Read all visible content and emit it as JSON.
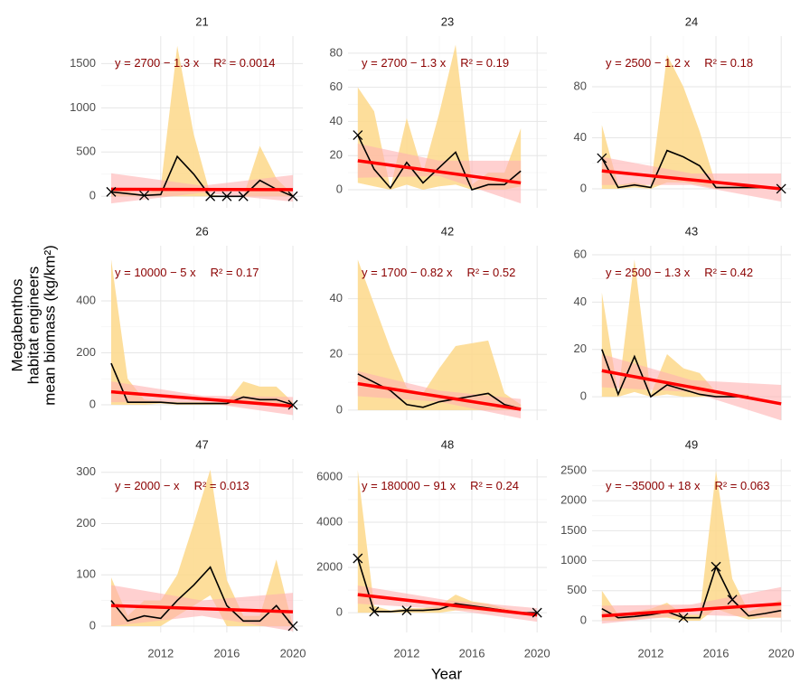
{
  "x_label": "Year",
  "y_label": [
    "Megabenthos",
    "habitat engineers",
    "mean biomass (kg/km²)"
  ],
  "xlim": [
    2008.4,
    2020.6
  ],
  "xticks": [
    2012,
    2016,
    2020
  ],
  "colors": {
    "mean": "#000000",
    "range": "#fdd88a",
    "fit": "#ff0000",
    "ci": "#ffb0b0"
  },
  "chart_data": [
    {
      "type": "line",
      "title": "21",
      "equation": "y = 2700 − 1.3 x",
      "r2": "R² = 0.0014",
      "ylim": [
        -130,
        1810
      ],
      "yticks": [
        0,
        500,
        1000,
        1500
      ],
      "x": [
        2009,
        2010,
        2011,
        2012,
        2013,
        2014,
        2015,
        2016,
        2017,
        2018,
        2019,
        2020
      ],
      "mean": [
        50,
        30,
        10,
        20,
        450,
        250,
        0,
        0,
        0,
        180,
        80,
        0
      ],
      "range_low": [
        0,
        0,
        0,
        0,
        0,
        0,
        0,
        0,
        0,
        0,
        0,
        0
      ],
      "range_high": [
        100,
        60,
        20,
        100,
        1700,
        700,
        20,
        0,
        0,
        570,
        200,
        20
      ],
      "markers": [
        50,
        null,
        10,
        null,
        null,
        null,
        0,
        0,
        0,
        null,
        null,
        0
      ],
      "fit_x": [
        2009,
        2020
      ],
      "fit": [
        80,
        75
      ],
      "ci_x": [
        2009,
        2014.5,
        2020
      ],
      "ci_low": [
        -80,
        40,
        -60
      ],
      "ci_high": [
        260,
        120,
        240
      ]
    },
    {
      "type": "line",
      "title": "23",
      "equation": "y = 2700 − 1.3 x",
      "r2": "R² = 0.19",
      "ylim": [
        -10.6,
        90
      ],
      "yticks": [
        0,
        20,
        40,
        60,
        80
      ],
      "x": [
        2009,
        2010,
        2011,
        2012,
        2013,
        2014,
        2015,
        2016,
        2017,
        2018,
        2019,
        2020
      ],
      "mean": [
        32,
        12,
        1,
        16,
        4,
        13,
        22,
        0,
        3,
        3,
        11,
        null
      ],
      "range_low": [
        4,
        2,
        0,
        3,
        0,
        2,
        3,
        0,
        0,
        0,
        2,
        null
      ],
      "range_high": [
        60,
        46,
        1,
        42,
        10,
        45,
        85,
        3,
        10,
        10,
        36,
        null
      ],
      "markers": [
        32,
        null,
        null,
        null,
        null,
        null,
        null,
        null,
        null,
        null,
        null,
        null
      ],
      "fit_x": [
        2009,
        2019
      ],
      "fit": [
        17,
        4
      ],
      "ci_x": [
        2009,
        2014,
        2019
      ],
      "ci_low": [
        7,
        8,
        -8
      ],
      "ci_high": [
        27,
        17,
        17
      ]
    },
    {
      "type": "line",
      "title": "24",
      "equation": "y = 2500 − 1.2 x",
      "r2": "R² = 0.18",
      "ylim": [
        -14.9,
        119.6
      ],
      "yticks": [
        0,
        40,
        80
      ],
      "x": [
        2009,
        2010,
        2011,
        2012,
        2013,
        2014,
        2015,
        2016,
        2017,
        2018,
        2019,
        2020
      ],
      "mean": [
        24,
        1,
        3,
        1,
        30,
        25,
        18,
        1,
        1,
        1,
        1,
        0
      ],
      "range_low": [
        0,
        0,
        1,
        0,
        5,
        5,
        3,
        0,
        0,
        0,
        0,
        0
      ],
      "range_high": [
        50,
        3,
        5,
        2,
        105,
        80,
        45,
        3,
        2,
        2,
        2,
        0
      ],
      "markers": [
        24,
        null,
        null,
        null,
        null,
        null,
        null,
        null,
        null,
        null,
        null,
        0
      ],
      "fit_x": [
        2009,
        2020
      ],
      "fit": [
        14,
        0
      ],
      "ci_x": [
        2009,
        2014.5,
        2020
      ],
      "ci_low": [
        3,
        3,
        -10
      ],
      "ci_high": [
        25,
        12,
        12
      ]
    },
    {
      "type": "line",
      "title": "26",
      "equation": "y = 10000 − 5 x",
      "r2": "R² = 0.17",
      "ylim": [
        -59,
        612
      ],
      "yticks": [
        0,
        200,
        400
      ],
      "x": [
        2009,
        2010,
        2011,
        2012,
        2013,
        2014,
        2015,
        2016,
        2017,
        2018,
        2019,
        2020
      ],
      "mean": [
        160,
        10,
        10,
        10,
        5,
        5,
        5,
        5,
        30,
        20,
        20,
        0
      ],
      "range_low": [
        0,
        0,
        0,
        5,
        0,
        0,
        0,
        0,
        5,
        5,
        5,
        0
      ],
      "range_high": [
        560,
        100,
        20,
        15,
        10,
        10,
        10,
        10,
        90,
        70,
        70,
        10
      ],
      "markers": [
        null,
        null,
        null,
        null,
        null,
        null,
        null,
        null,
        null,
        null,
        null,
        0
      ],
      "fit_x": [
        2009,
        2020
      ],
      "fit": [
        50,
        -5
      ],
      "ci_x": [
        2009,
        2014.5,
        2020
      ],
      "ci_low": [
        10,
        10,
        -40
      ],
      "ci_high": [
        90,
        35,
        30
      ]
    },
    {
      "type": "line",
      "title": "42",
      "equation": "y = 1700 − 0.82 x",
      "r2": "R² = 0.52",
      "ylim": [
        -3.6,
        59
      ],
      "yticks": [
        0,
        20,
        40
      ],
      "x": [
        2009,
        2010,
        2011,
        2012,
        2013,
        2014,
        2015,
        2016,
        2017,
        2018,
        2019,
        2020
      ],
      "mean": [
        13,
        10,
        7,
        2,
        1,
        3,
        4,
        5,
        6,
        2,
        0.5,
        null
      ],
      "range_low": [
        0,
        0,
        0,
        0,
        0,
        0,
        0,
        0,
        0,
        0,
        0,
        null
      ],
      "range_high": [
        54,
        38,
        22,
        8,
        6,
        15,
        23,
        24,
        25,
        6,
        2,
        null
      ],
      "markers": [
        null,
        null,
        null,
        null,
        null,
        null,
        null,
        null,
        null,
        null,
        null,
        null
      ],
      "fit_x": [
        2009,
        2019
      ],
      "fit": [
        9.5,
        0.3
      ],
      "ci_x": [
        2009,
        2014,
        2019
      ],
      "ci_low": [
        5,
        3,
        -3
      ],
      "ci_high": [
        14,
        7,
        4
      ]
    },
    {
      "type": "line",
      "title": "43",
      "equation": "y = 2500 − 1.3 x",
      "r2": "R² = 0.42",
      "ylim": [
        -9.9,
        63.8
      ],
      "yticks": [
        0,
        20,
        40,
        60
      ],
      "x": [
        2009,
        2010,
        2011,
        2012,
        2013,
        2014,
        2015,
        2016,
        2017,
        2018,
        2019,
        2020
      ],
      "mean": [
        20,
        1,
        17,
        0,
        5,
        3,
        1,
        0,
        0,
        0,
        null,
        null
      ],
      "range_low": [
        0,
        0,
        2,
        0,
        1,
        0,
        0,
        0,
        0,
        0,
        null,
        null
      ],
      "range_high": [
        44,
        1,
        58,
        1,
        18,
        12,
        10,
        2,
        1,
        1,
        null,
        null
      ],
      "markers": [
        null,
        null,
        null,
        null,
        null,
        null,
        null,
        null,
        null,
        null,
        null,
        null
      ],
      "fit_x": [
        2009,
        2020
      ],
      "fit": [
        11,
        -3
      ],
      "ci_x": [
        2009,
        2014.5,
        2020
      ],
      "ci_low": [
        4,
        2,
        -10
      ],
      "ci_high": [
        18,
        7,
        5
      ]
    },
    {
      "type": "line",
      "title": "47",
      "equation": "y = 2000 −  x",
      "r2": "R² = 0.013",
      "ylim": [
        -12.4,
        326
      ],
      "yticks": [
        0,
        100,
        200,
        300
      ],
      "x": [
        2009,
        2010,
        2011,
        2012,
        2013,
        2014,
        2015,
        2016,
        2017,
        2018,
        2019,
        2020
      ],
      "mean": [
        50,
        10,
        20,
        15,
        50,
        80,
        115,
        40,
        10,
        10,
        40,
        0
      ],
      "range_low": [
        0,
        0,
        0,
        0,
        20,
        40,
        60,
        0,
        0,
        0,
        0,
        0
      ],
      "range_high": [
        95,
        20,
        50,
        50,
        100,
        200,
        305,
        90,
        20,
        20,
        130,
        0
      ],
      "markers": [
        null,
        null,
        null,
        null,
        null,
        null,
        null,
        null,
        null,
        null,
        null,
        0
      ],
      "fit_x": [
        2009,
        2020
      ],
      "fit": [
        40,
        28
      ],
      "ci_x": [
        2009,
        2014.5,
        2020
      ],
      "ci_low": [
        0,
        20,
        -10
      ],
      "ci_high": [
        80,
        50,
        65
      ]
    },
    {
      "type": "line",
      "title": "48",
      "equation": "y = 180000 − 91 x",
      "r2": "R² = 0.24",
      "ylim": [
        -874,
        6793
      ],
      "yticks": [
        0,
        2000,
        4000,
        6000
      ],
      "x": [
        2009,
        2010,
        2011,
        2012,
        2013,
        2014,
        2015,
        2016,
        2017,
        2018,
        2019,
        2020
      ],
      "mean": [
        2400,
        50,
        50,
        100,
        100,
        150,
        400,
        300,
        200,
        100,
        0,
        0
      ],
      "range_low": [
        0,
        0,
        0,
        0,
        0,
        0,
        100,
        100,
        50,
        0,
        0,
        0
      ],
      "range_high": [
        6300,
        300,
        100,
        200,
        200,
        300,
        800,
        500,
        400,
        200,
        50,
        0
      ],
      "markers": [
        2400,
        50,
        null,
        100,
        null,
        null,
        null,
        null,
        null,
        null,
        null,
        0
      ],
      "fit_x": [
        2009,
        2020
      ],
      "fit": [
        800,
        -100
      ],
      "ci_x": [
        2009,
        2014.5,
        2020
      ],
      "ci_low": [
        400,
        150,
        -400
      ],
      "ci_high": [
        1200,
        550,
        200
      ]
    },
    {
      "type": "line",
      "title": "49",
      "equation": "y = −35000 + 18 x",
      "r2": "R² = 0.063",
      "ylim": [
        -196,
        2696
      ],
      "yticks": [
        0,
        500,
        1000,
        1500,
        2000,
        2500
      ],
      "x": [
        2009,
        2010,
        2011,
        2012,
        2013,
        2014,
        2015,
        2016,
        2017,
        2018,
        2019,
        2020
      ],
      "mean": [
        200,
        50,
        70,
        100,
        150,
        50,
        50,
        900,
        350,
        80,
        120,
        170
      ],
      "range_low": [
        0,
        0,
        20,
        50,
        50,
        0,
        0,
        200,
        100,
        20,
        50,
        50
      ],
      "range_high": [
        500,
        100,
        150,
        200,
        300,
        100,
        100,
        2500,
        700,
        150,
        250,
        350
      ],
      "markers": [
        null,
        null,
        null,
        null,
        null,
        50,
        null,
        900,
        350,
        null,
        null,
        null
      ],
      "fit_x": [
        2009,
        2020
      ],
      "fit": [
        80,
        280
      ],
      "ci_x": [
        2009,
        2014.5,
        2020
      ],
      "ci_low": [
        -50,
        100,
        50
      ],
      "ci_high": [
        250,
        270,
        560
      ]
    }
  ]
}
